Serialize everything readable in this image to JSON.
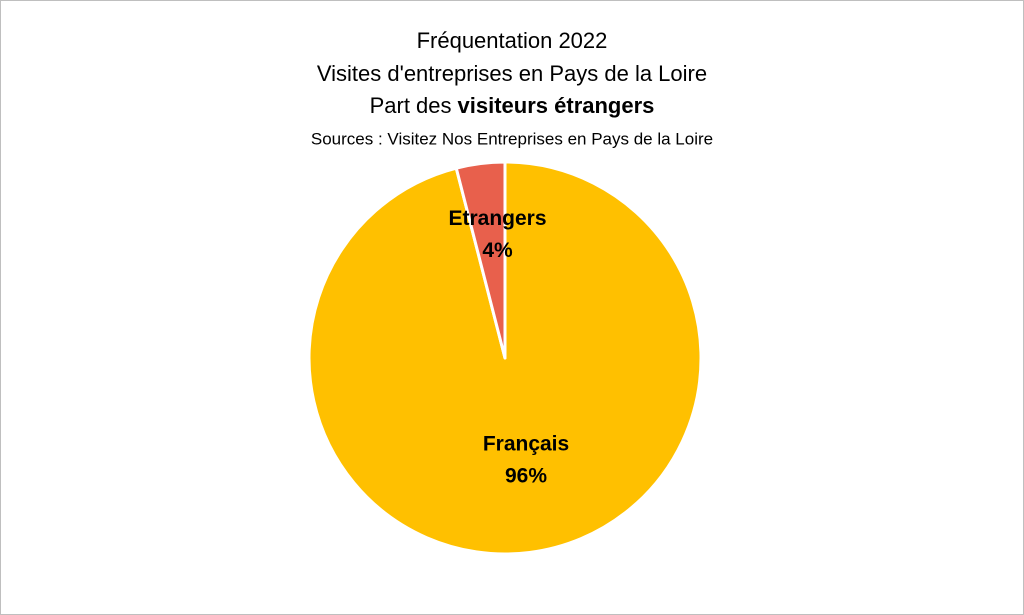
{
  "chart_data": {
    "type": "pie",
    "title": [
      "Fréquentation 2022",
      "Visites d'entreprises en Pays de la Loire",
      {
        "text": "Part des",
        "bold": "visiteurs étrangers"
      }
    ],
    "subtitle": "Sources : Visitez Nos Entreprises en Pays de la Loire",
    "categories": [
      "Français",
      "Etrangers"
    ],
    "values": [
      96,
      4
    ],
    "value_labels": [
      "96%",
      "4%"
    ],
    "colors": [
      "#FFC000",
      "#E8604C"
    ]
  }
}
